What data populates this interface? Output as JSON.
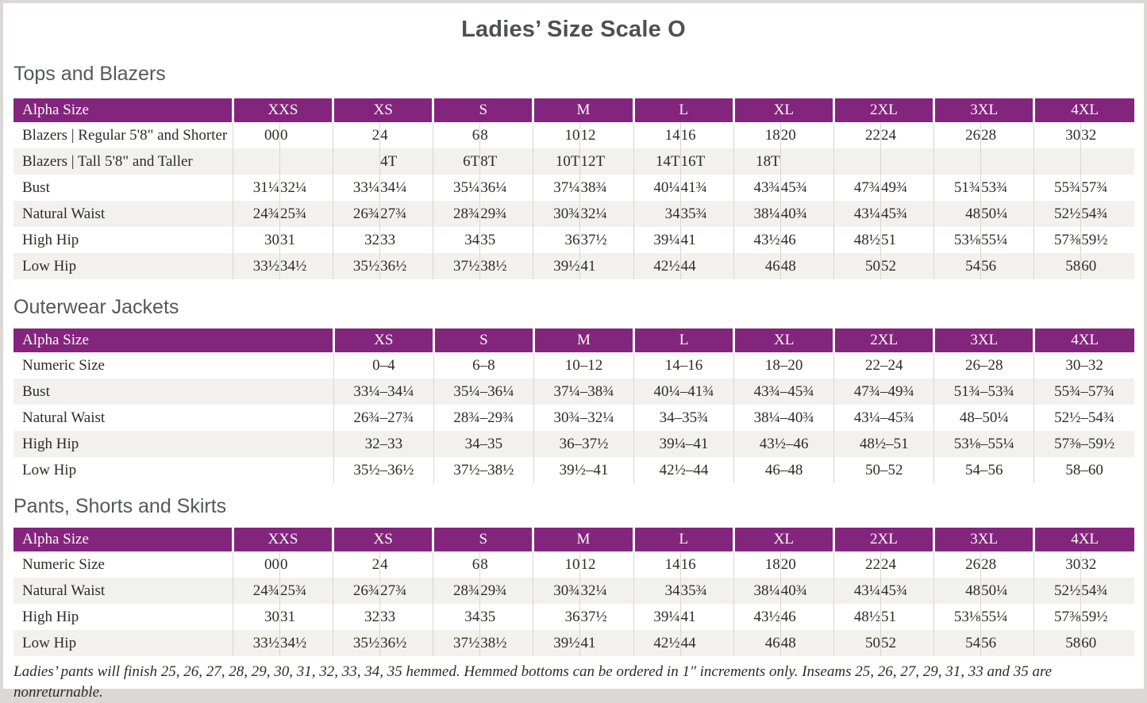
{
  "page": {
    "title": "Ladies’ Size Scale O",
    "footnote": "Ladies’ pants will finish 25, 26, 27, 28, 29, 30, 31, 32, 33, 34, 35 hemmed. Hemmed bottoms can be ordered in 1″ increments only. Inseams 25, 26, 27, 29, 31, 33 and 35 are nonreturnable."
  },
  "colors": {
    "header_purple": "#83257d",
    "row_stripe": "#f3f1ee",
    "cell_divider": "#d9d6d2",
    "heading_gray": "#56575a",
    "body_text": "#2f2b27",
    "page_surround": "#dbd9d6"
  },
  "tables": [
    {
      "section": "Tops and Blazers",
      "header_label": "Alpha Size",
      "sizes": [
        "XXS",
        "XS",
        "S",
        "M",
        "L",
        "XL",
        "2XL",
        "3XL",
        "4XL"
      ],
      "rows": [
        {
          "label": "Blazers | Regular 5'8\" and Shorter",
          "pairs": [
            [
              "00",
              "0"
            ],
            [
              "2",
              "4"
            ],
            [
              "6",
              "8"
            ],
            [
              "10",
              "12"
            ],
            [
              "14",
              "16"
            ],
            [
              "18",
              "20"
            ],
            [
              "22",
              "24"
            ],
            [
              "26",
              "28"
            ],
            [
              "30",
              "32"
            ]
          ]
        },
        {
          "label": "Blazers | Tall 5'8\" and Taller",
          "pairs": [
            [
              "",
              ""
            ],
            [
              "",
              "4T"
            ],
            [
              "6T",
              "8T"
            ],
            [
              "10T",
              "12T"
            ],
            [
              "14T",
              "16T"
            ],
            [
              "18T",
              ""
            ],
            [
              "",
              ""
            ],
            [
              "",
              ""
            ],
            [
              "",
              ""
            ]
          ]
        },
        {
          "label": "Bust",
          "pairs": [
            [
              "31¼",
              "32¼"
            ],
            [
              "33¼",
              "34¼"
            ],
            [
              "35¼",
              "36¼"
            ],
            [
              "37¼",
              "38¾"
            ],
            [
              "40¼",
              "41¾"
            ],
            [
              "43¾",
              "45¾"
            ],
            [
              "47¾",
              "49¾"
            ],
            [
              "51¾",
              "53¾"
            ],
            [
              "55¾",
              "57¾"
            ]
          ]
        },
        {
          "label": "Natural Waist",
          "pairs": [
            [
              "24¾",
              "25¾"
            ],
            [
              "26¾",
              "27¾"
            ],
            [
              "28¾",
              "29¾"
            ],
            [
              "30¾",
              "32¼"
            ],
            [
              "34",
              "35¾"
            ],
            [
              "38¼",
              "40¾"
            ],
            [
              "43¼",
              "45¾"
            ],
            [
              "48",
              "50¼"
            ],
            [
              "52½",
              "54¾"
            ]
          ]
        },
        {
          "label": "High Hip",
          "pairs": [
            [
              "30",
              "31"
            ],
            [
              "32",
              "33"
            ],
            [
              "34",
              "35"
            ],
            [
              "36",
              "37½"
            ],
            [
              "39¼",
              "41"
            ],
            [
              "43½",
              "46"
            ],
            [
              "48½",
              "51"
            ],
            [
              "53⅛",
              "55¼"
            ],
            [
              "57⅜",
              "59½"
            ]
          ]
        },
        {
          "label": "Low Hip",
          "pairs": [
            [
              "33½",
              "34½"
            ],
            [
              "35½",
              "36½"
            ],
            [
              "37½",
              "38½"
            ],
            [
              "39½",
              "41"
            ],
            [
              "42½",
              "44"
            ],
            [
              "46",
              "48"
            ],
            [
              "50",
              "52"
            ],
            [
              "54",
              "56"
            ],
            [
              "58",
              "60"
            ]
          ]
        }
      ]
    },
    {
      "section": "Outerwear Jackets",
      "header_label": "Alpha Size",
      "sizes": [
        "XS",
        "S",
        "M",
        "L",
        "XL",
        "2XL",
        "3XL",
        "4XL"
      ],
      "rows": [
        {
          "label": "Numeric Size",
          "values": [
            "0–4",
            "6–8",
            "10–12",
            "14–16",
            "18–20",
            "22–24",
            "26–28",
            "30–32"
          ]
        },
        {
          "label": "Bust",
          "values": [
            "33¼–34¼",
            "35¼–36¼",
            "37¼–38¾",
            "40¼–41¾",
            "43¾–45¾",
            "47¾–49¾",
            "51¾–53¾",
            "55¾–57¾"
          ]
        },
        {
          "label": "Natural Waist",
          "values": [
            "26¾–27¾",
            "28¾–29¾",
            "30¾–32¼",
            "34–35¾",
            "38¼–40¾",
            "43¼–45¾",
            "48–50¼",
            "52½–54¾"
          ]
        },
        {
          "label": "High Hip",
          "values": [
            "32–33",
            "34–35",
            "36–37½",
            "39¼–41",
            "43½–46",
            "48½–51",
            "53⅛–55¼",
            "57⅜–59½"
          ]
        },
        {
          "label": "Low Hip",
          "values": [
            "35½–36½",
            "37½–38½",
            "39½–41",
            "42½–44",
            "46–48",
            "50–52",
            "54–56",
            "58–60"
          ]
        }
      ]
    },
    {
      "section": "Pants, Shorts and Skirts",
      "header_label": "Alpha Size",
      "sizes": [
        "XXS",
        "XS",
        "S",
        "M",
        "L",
        "XL",
        "2XL",
        "3XL",
        "4XL"
      ],
      "rows": [
        {
          "label": "Numeric Size",
          "pairs": [
            [
              "00",
              "0"
            ],
            [
              "2",
              "4"
            ],
            [
              "6",
              "8"
            ],
            [
              "10",
              "12"
            ],
            [
              "14",
              "16"
            ],
            [
              "18",
              "20"
            ],
            [
              "22",
              "24"
            ],
            [
              "26",
              "28"
            ],
            [
              "30",
              "32"
            ]
          ]
        },
        {
          "label": "Natural Waist",
          "pairs": [
            [
              "24¾",
              "25¾"
            ],
            [
              "26¾",
              "27¾"
            ],
            [
              "28¾",
              "29¾"
            ],
            [
              "30¾",
              "32¼"
            ],
            [
              "34",
              "35¾"
            ],
            [
              "38¼",
              "40¾"
            ],
            [
              "43¼",
              "45¾"
            ],
            [
              "48",
              "50¼"
            ],
            [
              "52½",
              "54¾"
            ]
          ]
        },
        {
          "label": "High Hip",
          "pairs": [
            [
              "30",
              "31"
            ],
            [
              "32",
              "33"
            ],
            [
              "34",
              "35"
            ],
            [
              "36",
              "37½"
            ],
            [
              "39¼",
              "41"
            ],
            [
              "43½",
              "46"
            ],
            [
              "48½",
              "51"
            ],
            [
              "53⅛",
              "55¼"
            ],
            [
              "57⅜",
              "59½"
            ]
          ]
        },
        {
          "label": "Low Hip",
          "pairs": [
            [
              "33½",
              "34½"
            ],
            [
              "35½",
              "36½"
            ],
            [
              "37½",
              "38½"
            ],
            [
              "39½",
              "41"
            ],
            [
              "42½",
              "44"
            ],
            [
              "46",
              "48"
            ],
            [
              "50",
              "52"
            ],
            [
              "54",
              "56"
            ],
            [
              "58",
              "60"
            ]
          ]
        }
      ]
    }
  ]
}
